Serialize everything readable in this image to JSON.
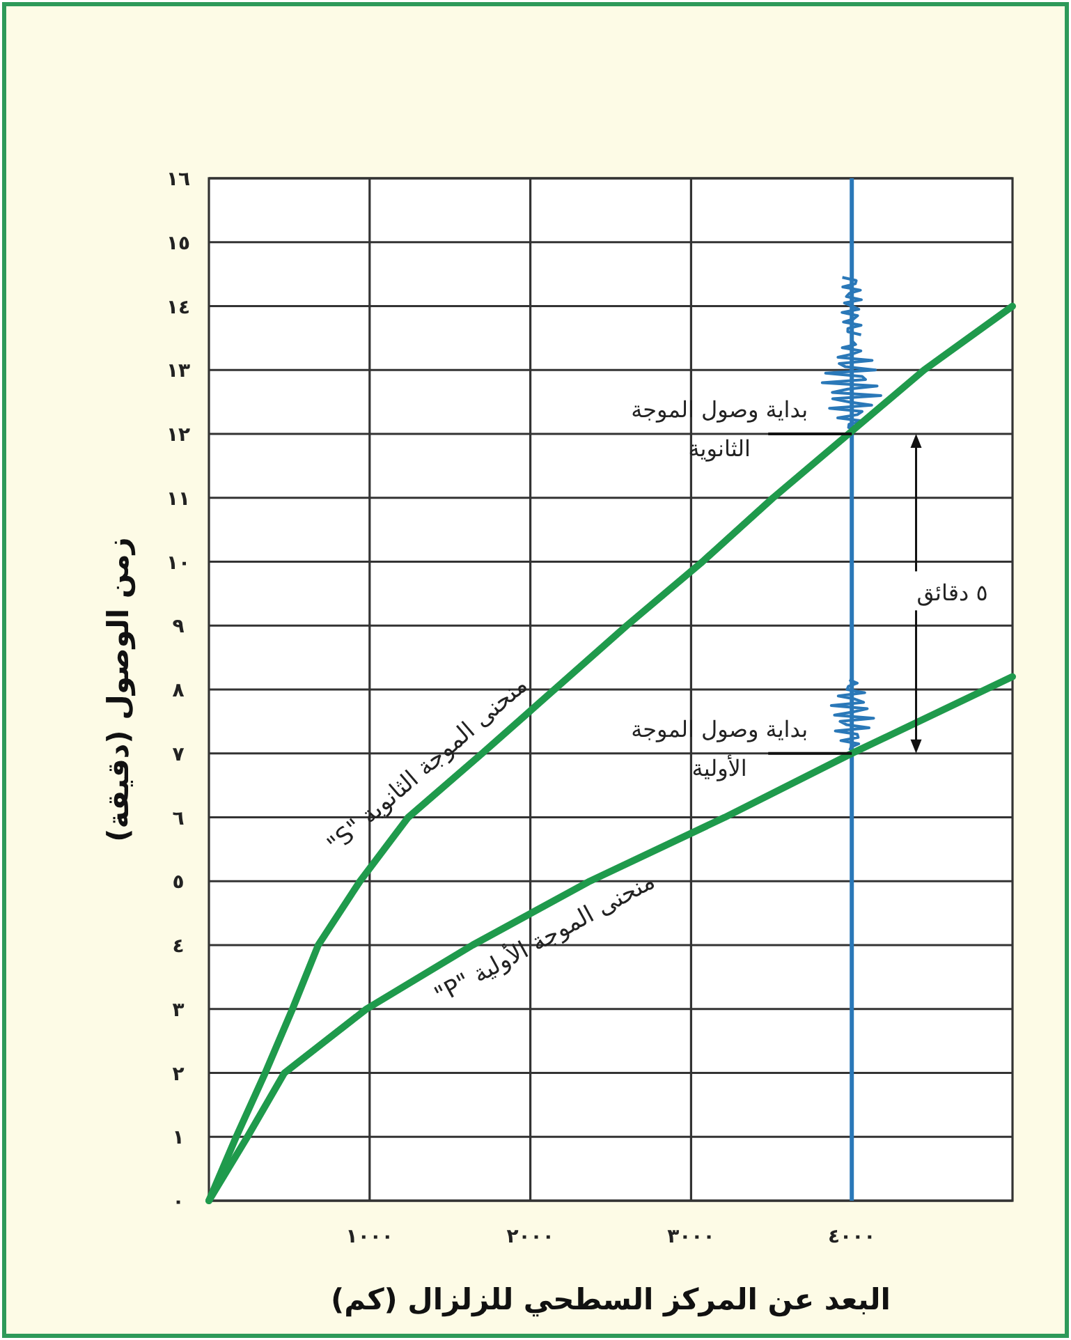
{
  "chart_data": {
    "type": "line",
    "xlabel": "البعد عن المركز السطحي للزلزال (كم)",
    "ylabel": "زمن الوصول (دقيقة)",
    "series": [
      {
        "name": "منحنى الموجة الثانوية \"S\"",
        "color": "#1f9a4c",
        "x": [
          0,
          170,
          350,
          520,
          680,
          940,
          1240,
          1700,
          2150,
          2600,
          3070,
          3510,
          3980,
          4450,
          5000
        ],
        "values": [
          0,
          1,
          2,
          3,
          4,
          5,
          6,
          7,
          8,
          9,
          10,
          11,
          12,
          13,
          14
        ]
      },
      {
        "name": "منحنى الموجة الأولية \"P\"",
        "color": "#1f9a4c",
        "x": [
          0,
          240,
          470,
          980,
          1640,
          2370,
          3210,
          4000,
          5000
        ],
        "values": [
          0,
          1,
          2,
          3,
          4,
          5,
          6,
          7,
          8.2
        ]
      }
    ],
    "xlim": [
      0,
      5000
    ],
    "ylim": [
      0,
      16
    ],
    "xticks": [
      {
        "value": 1000,
        "label": "١٠٠٠"
      },
      {
        "value": 2000,
        "label": "٢٠٠٠"
      },
      {
        "value": 3000,
        "label": "٣٠٠٠"
      },
      {
        "value": 4000,
        "label": "٤٠٠٠"
      }
    ],
    "yticks": [
      {
        "value": 0,
        "label": "٠"
      },
      {
        "value": 1,
        "label": "١"
      },
      {
        "value": 2,
        "label": "٢"
      },
      {
        "value": 3,
        "label": "٣"
      },
      {
        "value": 4,
        "label": "٤"
      },
      {
        "value": 5,
        "label": "٥"
      },
      {
        "value": 6,
        "label": "٦"
      },
      {
        "value": 7,
        "label": "٧"
      },
      {
        "value": 8,
        "label": "٨"
      },
      {
        "value": 9,
        "label": "٩"
      },
      {
        "value": 10,
        "label": "١٠"
      },
      {
        "value": 11,
        "label": "١١"
      },
      {
        "value": 12,
        "label": "١٢"
      },
      {
        "value": 13,
        "label": "١٣"
      },
      {
        "value": 14,
        "label": "١٤"
      },
      {
        "value": 15,
        "label": "١٥"
      },
      {
        "value": 16,
        "label": "١٦"
      }
    ],
    "ref_lines": [
      {
        "axis": "x",
        "value": 4000,
        "color": "#2a78b8"
      }
    ],
    "grid": true,
    "legend": false,
    "marker": "none",
    "line_style": "solid",
    "annotations": [
      {
        "text": "بداية وصول الموجة الثانوية",
        "x": 4000,
        "y": 12
      },
      {
        "text": "بداية وصول الموجة الأولية",
        "x": 4000,
        "y": 7
      },
      "٥ دقائق"
    ]
  }
}
